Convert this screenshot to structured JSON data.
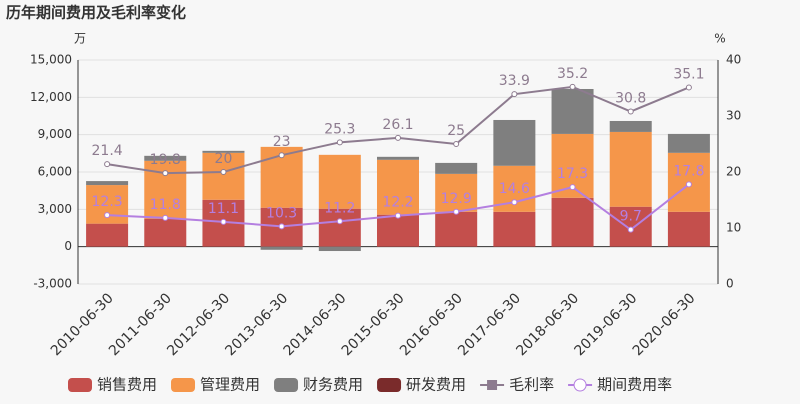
{
  "chart_data": {
    "type": "bar-line",
    "title": "历年期间费用及毛利率变化",
    "y_unit": "万",
    "y2_unit": "%",
    "categories": [
      "2010-06-30",
      "2011-06-30",
      "2012-06-30",
      "2013-06-30",
      "2014-06-30",
      "2015-06-30",
      "2016-06-30",
      "2017-06-30",
      "2018-06-30",
      "2019-06-30",
      "2020-06-30"
    ],
    "series": [
      {
        "name": "销售费用",
        "color": "#c44f4c",
        "kind": "bar",
        "values": [
          1850,
          2250,
          3770,
          3130,
          3050,
          2570,
          2800,
          2800,
          3930,
          3210,
          2800
        ]
      },
      {
        "name": "管理费用",
        "color": "#f5964a",
        "kind": "bar",
        "values": [
          3100,
          4650,
          3770,
          4890,
          4330,
          4410,
          3050,
          3700,
          5130,
          6010,
          4740
        ]
      },
      {
        "name": "财务费用",
        "color": "#7f7f7f",
        "kind": "bar",
        "values": [
          320,
          400,
          160,
          -250,
          -350,
          240,
          880,
          3680,
          3610,
          880,
          1520
        ]
      },
      {
        "name": "研发费用",
        "color": "#7a2b2b",
        "kind": "bar",
        "values": [
          0,
          0,
          0,
          0,
          0,
          0,
          0,
          0,
          0,
          0,
          0
        ]
      },
      {
        "name": "毛利率",
        "color": "#8d7b8f",
        "kind": "line",
        "axis": "y2",
        "values": [
          21.4,
          19.8,
          20,
          23,
          25.3,
          26.1,
          25,
          33.9,
          35.2,
          30.8,
          35.1
        ]
      },
      {
        "name": "期间费用率",
        "color": "#b47fe0",
        "kind": "line",
        "axis": "y2",
        "values": [
          12.3,
          11.8,
          11.1,
          10.3,
          11.2,
          12.2,
          12.9,
          14.6,
          17.3,
          9.7,
          17.8
        ]
      }
    ],
    "ylim": [
      -3000,
      15000
    ],
    "yticks": [
      {
        "value": -3000,
        "label": "-3,000"
      },
      0,
      {
        "value": 3000,
        "label": "3,000"
      },
      {
        "value": 6000,
        "label": "6,000"
      },
      {
        "value": 9000,
        "label": "9,000"
      },
      {
        "value": 12000,
        "label": "12,000"
      },
      {
        "value": 15000,
        "label": "15,000"
      }
    ],
    "y2lim": [
      0,
      40
    ],
    "y2ticks": [
      0,
      10,
      20,
      30,
      40
    ],
    "grid": true
  }
}
